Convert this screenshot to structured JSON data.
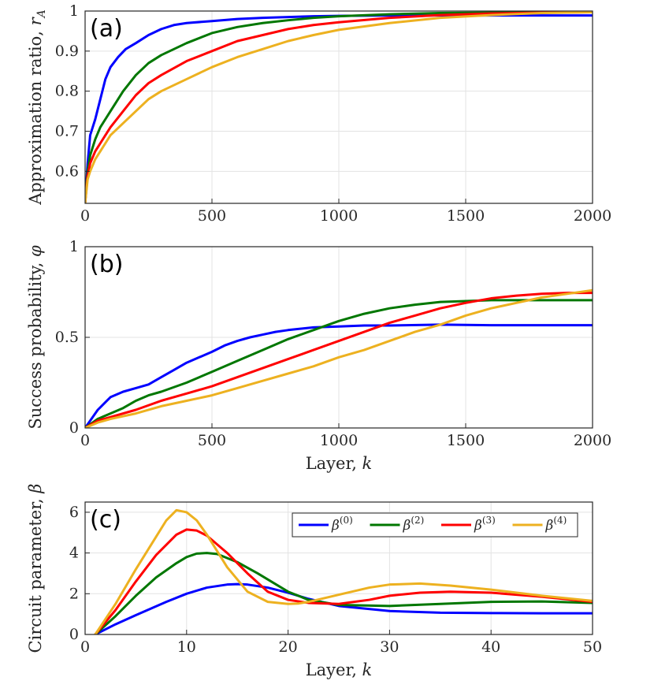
{
  "chart_data": [
    {
      "type": "line",
      "panel_label": "(a)",
      "xlabel": "",
      "ylabel": "Approximation ratio, r_A",
      "ylabel_main": "Approximation ratio, ",
      "ylabel_sym": "r",
      "ylabel_sub": "A",
      "xlim": [
        0,
        2000
      ],
      "ylim": [
        0.52,
        1.0
      ],
      "xticks": [
        0,
        500,
        1000,
        1500,
        2000
      ],
      "xtick_labels": [
        "0",
        "500",
        "1000",
        "1500",
        "2000"
      ],
      "yticks": [
        0.6,
        0.7,
        0.8,
        0.9,
        1.0
      ],
      "ytick_labels": [
        "0.6",
        "0.7",
        "0.8",
        "0.9",
        "1"
      ],
      "grid": true,
      "series": [
        {
          "name": "beta0",
          "color": "#0000ff",
          "x": [
            0,
            10,
            20,
            40,
            60,
            80,
            100,
            130,
            160,
            200,
            250,
            300,
            350,
            400,
            500,
            600,
            700,
            800,
            900,
            1000,
            1200,
            1400,
            1600,
            1800,
            2000
          ],
          "y": [
            0.52,
            0.62,
            0.69,
            0.73,
            0.78,
            0.83,
            0.86,
            0.885,
            0.905,
            0.92,
            0.94,
            0.955,
            0.965,
            0.97,
            0.975,
            0.98,
            0.983,
            0.985,
            0.987,
            0.988,
            0.989,
            0.989,
            0.989,
            0.989,
            0.989
          ]
        },
        {
          "name": "beta2",
          "color": "#007700",
          "x": [
            0,
            10,
            20,
            40,
            60,
            80,
            100,
            150,
            200,
            250,
            300,
            400,
            500,
            600,
            700,
            800,
            900,
            1000,
            1200,
            1400,
            1600,
            1800,
            2000
          ],
          "y": [
            0.52,
            0.6,
            0.64,
            0.68,
            0.71,
            0.73,
            0.75,
            0.8,
            0.84,
            0.87,
            0.89,
            0.92,
            0.945,
            0.96,
            0.97,
            0.977,
            0.983,
            0.987,
            0.992,
            0.995,
            0.996,
            0.997,
            0.997
          ]
        },
        {
          "name": "beta3",
          "color": "#ff0000",
          "x": [
            0,
            10,
            20,
            40,
            60,
            80,
            100,
            150,
            200,
            250,
            300,
            400,
            500,
            600,
            700,
            800,
            900,
            1000,
            1200,
            1400,
            1600,
            1800,
            2000
          ],
          "y": [
            0.52,
            0.59,
            0.62,
            0.65,
            0.67,
            0.69,
            0.71,
            0.75,
            0.79,
            0.82,
            0.84,
            0.875,
            0.9,
            0.925,
            0.94,
            0.955,
            0.965,
            0.972,
            0.983,
            0.99,
            0.994,
            0.996,
            0.997
          ]
        },
        {
          "name": "beta4",
          "color": "#edb120",
          "x": [
            0,
            10,
            20,
            40,
            60,
            80,
            100,
            150,
            200,
            250,
            300,
            400,
            500,
            600,
            700,
            800,
            900,
            1000,
            1200,
            1400,
            1600,
            1800,
            2000
          ],
          "y": [
            0.52,
            0.58,
            0.6,
            0.63,
            0.65,
            0.67,
            0.69,
            0.72,
            0.75,
            0.78,
            0.8,
            0.83,
            0.86,
            0.885,
            0.905,
            0.925,
            0.94,
            0.953,
            0.97,
            0.983,
            0.99,
            0.995,
            0.997
          ]
        }
      ]
    },
    {
      "type": "line",
      "panel_label": "(b)",
      "xlabel": "Layer, k",
      "xlabel_main": "Layer, ",
      "xlabel_sym": "k",
      "ylabel": "Success probability, φ",
      "ylabel_main": "Success probability, ",
      "ylabel_sym": "φ",
      "xlim": [
        0,
        2000
      ],
      "ylim": [
        0,
        1
      ],
      "xticks": [
        0,
        500,
        1000,
        1500,
        2000
      ],
      "xtick_labels": [
        "0",
        "500",
        "1000",
        "1500",
        "2000"
      ],
      "yticks": [
        0,
        0.5,
        1
      ],
      "ytick_labels": [
        "0",
        "0.5",
        "1"
      ],
      "grid": true,
      "series": [
        {
          "name": "beta0",
          "color": "#0000ff",
          "x": [
            0,
            50,
            100,
            150,
            200,
            250,
            300,
            350,
            400,
            450,
            500,
            550,
            600,
            650,
            700,
            750,
            800,
            900,
            1000,
            1100,
            1200,
            1400,
            1600,
            1800,
            2000
          ],
          "y": [
            0,
            0.1,
            0.17,
            0.2,
            0.22,
            0.24,
            0.28,
            0.32,
            0.36,
            0.39,
            0.42,
            0.455,
            0.48,
            0.5,
            0.515,
            0.53,
            0.54,
            0.555,
            0.56,
            0.565,
            0.565,
            0.57,
            0.567,
            0.567,
            0.567
          ]
        },
        {
          "name": "beta2",
          "color": "#007700",
          "x": [
            0,
            50,
            100,
            150,
            200,
            250,
            300,
            400,
            500,
            600,
            700,
            800,
            900,
            1000,
            1100,
            1200,
            1300,
            1400,
            1500,
            1600,
            1800,
            2000
          ],
          "y": [
            0,
            0.05,
            0.08,
            0.11,
            0.15,
            0.18,
            0.2,
            0.25,
            0.31,
            0.37,
            0.43,
            0.49,
            0.54,
            0.59,
            0.63,
            0.66,
            0.68,
            0.695,
            0.7,
            0.705,
            0.705,
            0.705
          ]
        },
        {
          "name": "beta3",
          "color": "#ff0000",
          "x": [
            0,
            50,
            100,
            200,
            300,
            400,
            500,
            600,
            700,
            800,
            900,
            1000,
            1100,
            1200,
            1300,
            1400,
            1500,
            1600,
            1700,
            1800,
            1900,
            2000
          ],
          "y": [
            0,
            0.04,
            0.06,
            0.1,
            0.15,
            0.19,
            0.23,
            0.28,
            0.33,
            0.38,
            0.43,
            0.48,
            0.53,
            0.58,
            0.62,
            0.66,
            0.69,
            0.715,
            0.73,
            0.74,
            0.745,
            0.745
          ]
        },
        {
          "name": "beta4",
          "color": "#edb120",
          "x": [
            0,
            50,
            100,
            200,
            300,
            400,
            500,
            600,
            700,
            800,
            900,
            1000,
            1100,
            1200,
            1300,
            1400,
            1500,
            1600,
            1700,
            1800,
            1900,
            2000
          ],
          "y": [
            0,
            0.03,
            0.05,
            0.08,
            0.12,
            0.15,
            0.18,
            0.22,
            0.26,
            0.3,
            0.34,
            0.39,
            0.43,
            0.48,
            0.53,
            0.57,
            0.62,
            0.66,
            0.69,
            0.72,
            0.74,
            0.76
          ]
        }
      ]
    },
    {
      "type": "line",
      "panel_label": "(c)",
      "xlabel": "Layer, k",
      "xlabel_main": "Layer, ",
      "xlabel_sym": "k",
      "ylabel": "Circuit parameter, β",
      "ylabel_main": "Circuit parameter, ",
      "ylabel_sym": "β",
      "xlim": [
        0,
        50
      ],
      "ylim": [
        0,
        6.5
      ],
      "xticks": [
        0,
        10,
        20,
        30,
        40,
        50
      ],
      "xtick_labels": [
        "0",
        "10",
        "20",
        "30",
        "40",
        "50"
      ],
      "yticks": [
        0,
        2,
        4,
        6
      ],
      "ytick_labels": [
        "0",
        "2",
        "4",
        "6"
      ],
      "grid": true,
      "legend_position": "top-right",
      "legend": [
        {
          "sym": "β",
          "sup": "(0)",
          "color": "#0000ff"
        },
        {
          "sym": "β",
          "sup": "(2)",
          "color": "#007700"
        },
        {
          "sym": "β",
          "sup": "(3)",
          "color": "#ff0000"
        },
        {
          "sym": "β",
          "sup": "(4)",
          "color": "#edb120"
        }
      ],
      "series": [
        {
          "name": "beta0",
          "color": "#0000ff",
          "x": [
            1,
            3,
            5,
            8,
            10,
            12,
            14,
            15,
            16,
            18,
            20,
            22,
            25,
            30,
            35,
            40,
            45,
            50
          ],
          "y": [
            0,
            0.5,
            0.95,
            1.6,
            2.0,
            2.3,
            2.45,
            2.47,
            2.45,
            2.3,
            2.05,
            1.75,
            1.4,
            1.15,
            1.07,
            1.05,
            1.04,
            1.04
          ]
        },
        {
          "name": "beta2",
          "color": "#007700",
          "x": [
            1,
            3,
            5,
            7,
            9,
            10,
            11,
            12,
            13,
            15,
            17,
            20,
            22,
            25,
            30,
            35,
            40,
            45,
            50
          ],
          "y": [
            0,
            0.9,
            1.9,
            2.8,
            3.5,
            3.8,
            3.97,
            4.0,
            3.95,
            3.55,
            3.0,
            2.1,
            1.7,
            1.45,
            1.4,
            1.5,
            1.6,
            1.62,
            1.55
          ]
        },
        {
          "name": "beta3",
          "color": "#ff0000",
          "x": [
            1,
            3,
            5,
            7,
            9,
            10,
            11,
            12,
            14,
            16,
            18,
            20,
            22,
            25,
            28,
            30,
            33,
            36,
            40,
            45,
            50
          ],
          "y": [
            0,
            1.2,
            2.6,
            3.9,
            4.9,
            5.15,
            5.1,
            4.85,
            4.0,
            3.0,
            2.1,
            1.7,
            1.55,
            1.5,
            1.7,
            1.9,
            2.05,
            2.1,
            2.05,
            1.85,
            1.6
          ]
        },
        {
          "name": "beta4",
          "color": "#edb120",
          "x": [
            1,
            3,
            5,
            7,
            8,
            9,
            10,
            11,
            12,
            14,
            16,
            18,
            20,
            21,
            22,
            25,
            28,
            30,
            33,
            36,
            40,
            45,
            50
          ],
          "y": [
            0,
            1.5,
            3.2,
            4.8,
            5.6,
            6.1,
            6.0,
            5.6,
            4.9,
            3.3,
            2.1,
            1.6,
            1.5,
            1.52,
            1.6,
            1.95,
            2.3,
            2.45,
            2.5,
            2.4,
            2.2,
            1.9,
            1.65
          ]
        }
      ]
    }
  ]
}
